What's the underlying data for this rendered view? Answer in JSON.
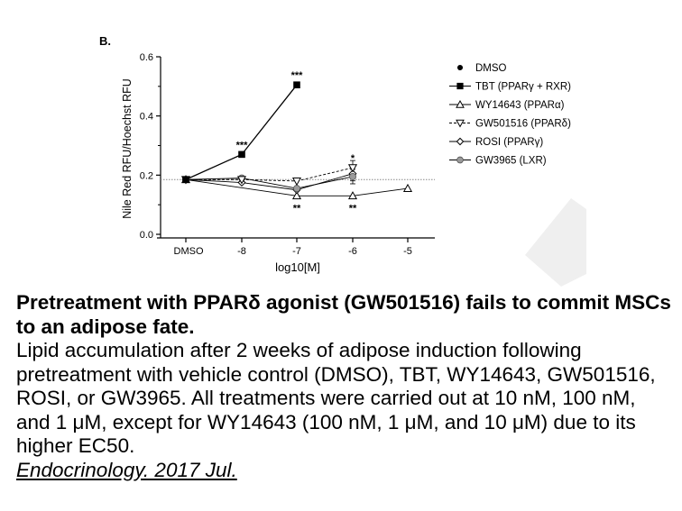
{
  "chart_data": {
    "type": "line",
    "panel_label": "B.",
    "ylabel": "Nile Red RFU/Hoechst RFU",
    "xlabel": "log10[M]",
    "categories": [
      "DMSO",
      "-8",
      "-7",
      "-6",
      "-5"
    ],
    "yticks": [
      "0.0",
      "0.2",
      "0.4",
      "0.6"
    ],
    "ylim": [
      0,
      0.6
    ],
    "reference_line": 0.185,
    "grid": false,
    "legend_position": "right",
    "series": [
      {
        "name": "DMSO",
        "marker": "filled-circle",
        "line": "none",
        "values": [
          0.185,
          null,
          null,
          null,
          null
        ]
      },
      {
        "name": "TBT (PPARγ + RXR)",
        "marker": "filled-square",
        "line": "solid",
        "values": [
          0.185,
          0.27,
          0.505,
          null,
          null
        ]
      },
      {
        "name": "WY14643 (PPARα)",
        "marker": "open-triangle-up",
        "line": "solid",
        "values": [
          0.185,
          null,
          0.13,
          0.13,
          0.155
        ]
      },
      {
        "name": "GW501516 (PPARδ)",
        "marker": "open-triangle-down",
        "line": "dashed",
        "values": [
          0.185,
          0.185,
          0.18,
          0.225,
          null
        ]
      },
      {
        "name": "ROSI (PPARγ)",
        "marker": "open-diamond",
        "line": "solid",
        "values": [
          0.185,
          0.175,
          0.15,
          0.205,
          null
        ]
      },
      {
        "name": "GW3965 (LXR)",
        "marker": "grey-circle",
        "line": "solid",
        "values": [
          0.185,
          0.19,
          0.155,
          0.195,
          null
        ]
      }
    ],
    "annotations": [
      {
        "text": "***",
        "x": "-8",
        "y": 0.27,
        "position": "above"
      },
      {
        "text": "***",
        "x": "-7",
        "y": 0.505,
        "position": "above"
      },
      {
        "text": "**",
        "x": "-7",
        "y": 0.13,
        "position": "below"
      },
      {
        "text": "*",
        "x": "-6",
        "y": 0.225,
        "position": "above"
      },
      {
        "text": "**",
        "x": "-6",
        "y": 0.13,
        "position": "below"
      }
    ]
  },
  "caption": {
    "title": "Pretreatment with PPARδ agonist (GW501516) fails to commit MSCs to an adipose fate.",
    "body": "Lipid accumulation after 2 weeks of adipose induction following pretreatment with vehicle control (DMSO), TBT, WY14643, GW501516, ROSI, or GW3965. All treatments were carried out at 10 nM, 100 nM, and 1 μM, except for WY14643 (100 nM, 1 μM, and 10 μM) due to its higher EC50.",
    "citation": "Endocrinology. 2017 Jul."
  },
  "colors": {
    "axis": "#000000",
    "reference_line": "#888888",
    "gw3965_fill": "#9a9a9a",
    "watermark": "#efefef"
  }
}
